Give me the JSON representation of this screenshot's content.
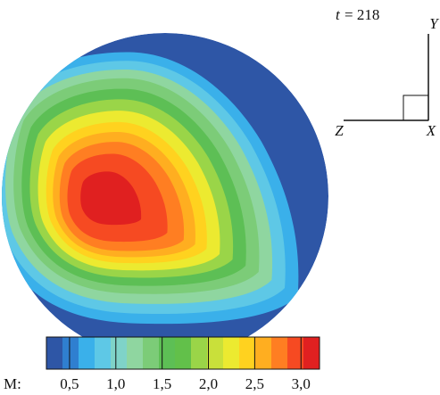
{
  "chart_data": {
    "type": "contour",
    "annotation": {
      "symbol": "t",
      "text": "= 218"
    },
    "axes_labels": {
      "x": "X",
      "y": "Y",
      "z": "Z"
    },
    "colorbar": {
      "label": "M:",
      "lim": [
        0.25,
        3.2
      ],
      "ticks": [
        {
          "value": 0.5,
          "label": "0,5"
        },
        {
          "value": 1.0,
          "label": "1,0"
        },
        {
          "value": 1.5,
          "label": "1,5"
        },
        {
          "value": 2.0,
          "label": "2,0"
        },
        {
          "value": 2.5,
          "label": "2,5"
        },
        {
          "value": 3.0,
          "label": "3,0"
        }
      ],
      "colors": [
        "#2e56a6",
        "#2f7fd0",
        "#3ab0ea",
        "#5ec8e6",
        "#7fd3c8",
        "#8fd6a0",
        "#7ccc78",
        "#5dbf55",
        "#62c04a",
        "#9ad548",
        "#c9e03a",
        "#ecea30",
        "#ffd21f",
        "#ffae20",
        "#ff7e22",
        "#f64a22",
        "#e02020"
      ]
    }
  }
}
